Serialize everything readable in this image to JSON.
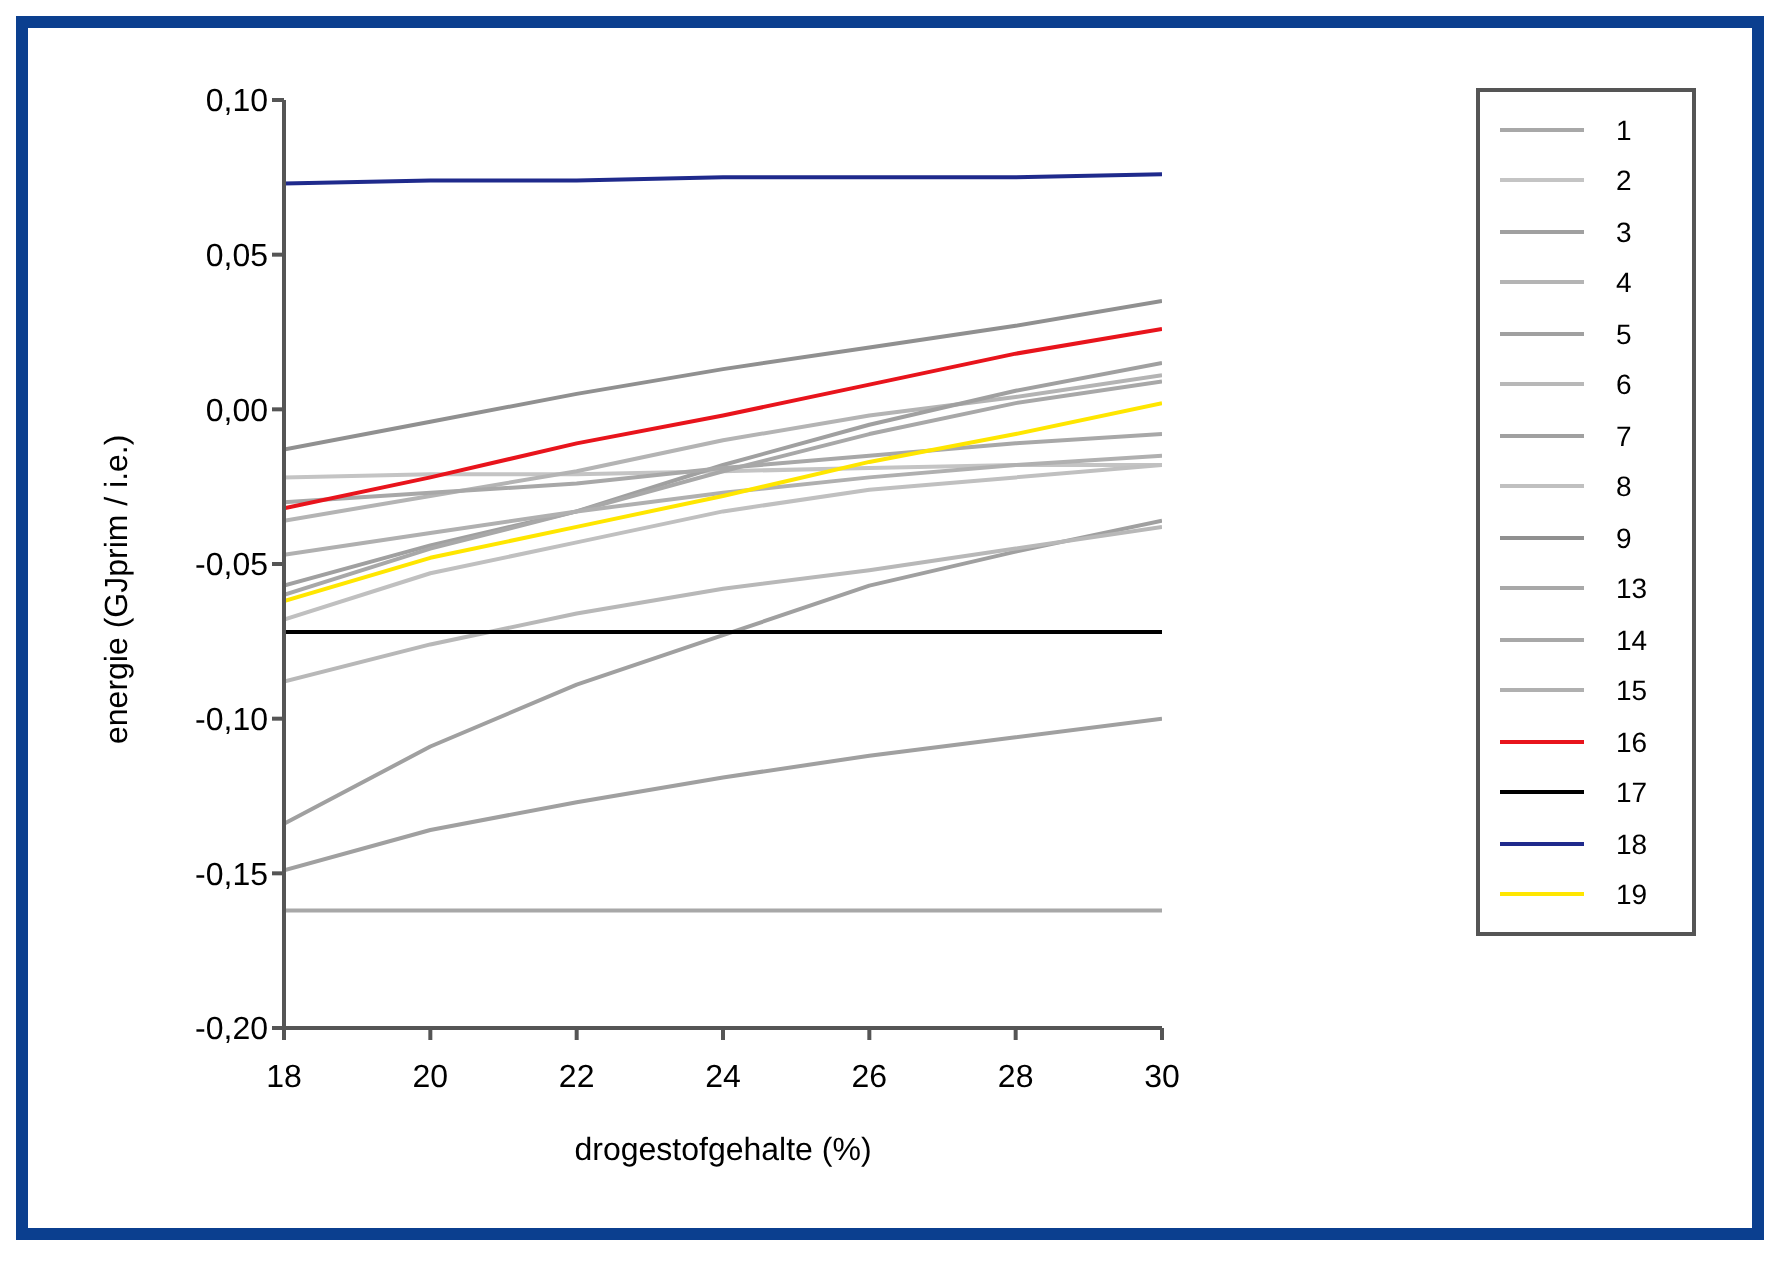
{
  "chart_data": {
    "type": "line",
    "xlabel": "drogestofgehalte (%)",
    "ylabel": "energie (GJprim / i.e.)",
    "x": [
      18,
      20,
      22,
      24,
      26,
      28,
      30
    ],
    "xlim": [
      18,
      30
    ],
    "xticks": [
      18,
      20,
      22,
      24,
      26,
      28,
      30
    ],
    "ylim": [
      -0.2,
      0.1
    ],
    "yticks": [
      {
        "value": -0.2,
        "label": "-0,20"
      },
      {
        "value": -0.15,
        "label": "-0,15"
      },
      {
        "value": -0.1,
        "label": "-0,10"
      },
      {
        "value": -0.05,
        "label": "-0,05"
      },
      {
        "value": 0,
        "label": "0,00"
      },
      {
        "value": 0.05,
        "label": "0,05"
      },
      {
        "value": 0.1,
        "label": "0,10"
      }
    ],
    "grid": false,
    "legend": "right",
    "marker": "none",
    "line_style": "solid",
    "series": [
      {
        "name": "1",
        "color": "#a8a8a8",
        "values": [
          -0.162,
          -0.162,
          -0.162,
          -0.162,
          -0.162,
          -0.162,
          -0.162
        ]
      },
      {
        "name": "2",
        "color": "#c4c4c4",
        "values": [
          -0.022,
          -0.021,
          -0.021,
          -0.02,
          -0.019,
          -0.018,
          -0.018
        ]
      },
      {
        "name": "3",
        "color": "#a0a0a0",
        "values": [
          -0.149,
          -0.136,
          -0.127,
          -0.119,
          -0.112,
          -0.106,
          -0.1
        ]
      },
      {
        "name": "4",
        "color": "#b4b4b4",
        "values": [
          -0.036,
          -0.028,
          -0.02,
          -0.01,
          -0.002,
          0.004,
          0.011
        ]
      },
      {
        "name": "5",
        "color": "#a0a0a0",
        "values": [
          -0.134,
          -0.109,
          -0.089,
          -0.073,
          -0.057,
          -0.046,
          -0.036
        ]
      },
      {
        "name": "6",
        "color": "#b8b8b8",
        "values": [
          -0.088,
          -0.076,
          -0.066,
          -0.058,
          -0.052,
          -0.045,
          -0.038
        ]
      },
      {
        "name": "7",
        "color": "#a0a0a0",
        "values": [
          -0.057,
          -0.044,
          -0.033,
          -0.018,
          -0.005,
          0.006,
          0.015
        ]
      },
      {
        "name": "8",
        "color": "#c0c0c0",
        "values": [
          -0.068,
          -0.053,
          -0.043,
          -0.033,
          -0.026,
          -0.022,
          -0.018
        ]
      },
      {
        "name": "9",
        "color": "#909090",
        "values": [
          -0.013,
          -0.004,
          0.005,
          0.013,
          0.02,
          0.027,
          0.035
        ]
      },
      {
        "name": "13",
        "color": "#a8a8a8",
        "values": [
          -0.03,
          -0.027,
          -0.024,
          -0.019,
          -0.015,
          -0.011,
          -0.008
        ]
      },
      {
        "name": "14",
        "color": "#a8a8a8",
        "values": [
          -0.06,
          -0.045,
          -0.033,
          -0.02,
          -0.008,
          0.002,
          0.009
        ]
      },
      {
        "name": "15",
        "color": "#b0b0b0",
        "values": [
          -0.047,
          -0.04,
          -0.033,
          -0.027,
          -0.022,
          -0.018,
          -0.015
        ]
      },
      {
        "name": "16",
        "color": "#e8141c",
        "values": [
          -0.032,
          -0.022,
          -0.011,
          -0.002,
          0.008,
          0.018,
          0.026
        ]
      },
      {
        "name": "17",
        "color": "#000000",
        "values": [
          -0.072,
          -0.072,
          -0.072,
          -0.072,
          -0.072,
          -0.072,
          -0.072
        ]
      },
      {
        "name": "18",
        "color": "#1f2a8c",
        "values": [
          0.073,
          0.074,
          0.074,
          0.075,
          0.075,
          0.075,
          0.076
        ]
      },
      {
        "name": "19",
        "color": "#ffe600",
        "values": [
          -0.062,
          -0.048,
          -0.038,
          -0.028,
          -0.017,
          -0.008,
          0.002
        ]
      }
    ]
  }
}
